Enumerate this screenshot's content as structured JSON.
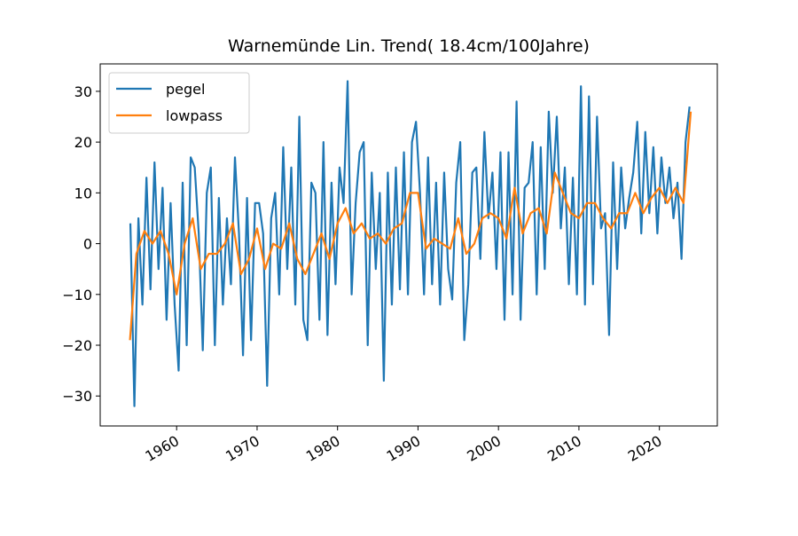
{
  "chart_data": {
    "type": "line",
    "title": "Warnemünde   Lin. Trend( 18.4cm/100Jahre)",
    "xlim": [
      1950.5,
      2027.2
    ],
    "xticks": [
      1960,
      1970,
      1980,
      1990,
      2000,
      2010,
      2020
    ],
    "ylim": [
      -35.9,
      35.4
    ],
    "yticks": [
      {
        "value": 30,
        "label": "30"
      },
      {
        "value": 20,
        "label": "20"
      },
      {
        "value": 10,
        "label": "10"
      },
      {
        "value": 0,
        "label": "0"
      },
      {
        "value": -10,
        "label": "−10"
      },
      {
        "value": -20,
        "label": "−20"
      },
      {
        "value": -30,
        "label": "−30"
      }
    ],
    "legend": "upper left",
    "grid": false,
    "series": [
      {
        "name": "pegel",
        "color": "#1f77b4",
        "x": [
          1954.25,
          1954.75,
          1955.25,
          1955.75,
          1956.25,
          1956.75,
          1957.25,
          1957.75,
          1958.25,
          1958.75,
          1959.25,
          1959.75,
          1960.25,
          1960.75,
          1961.25,
          1961.75,
          1962.25,
          1962.75,
          1963.25,
          1963.75,
          1964.25,
          1964.75,
          1965.25,
          1965.75,
          1966.25,
          1966.75,
          1967.25,
          1967.75,
          1968.25,
          1968.75,
          1969.25,
          1969.75,
          1970.25,
          1970.75,
          1971.25,
          1971.75,
          1972.25,
          1972.75,
          1973.25,
          1973.75,
          1974.25,
          1974.75,
          1975.25,
          1975.75,
          1976.25,
          1976.75,
          1977.25,
          1977.75,
          1978.25,
          1978.75,
          1979.25,
          1979.75,
          1980.25,
          1980.75,
          1981.25,
          1981.75,
          1982.25,
          1982.75,
          1983.25,
          1983.75,
          1984.25,
          1984.75,
          1985.25,
          1985.75,
          1986.25,
          1986.75,
          1987.25,
          1987.75,
          1988.25,
          1988.75,
          1989.25,
          1989.75,
          1990.25,
          1990.75,
          1991.25,
          1991.75,
          1992.25,
          1992.75,
          1993.25,
          1993.75,
          1994.25,
          1994.75,
          1995.25,
          1995.75,
          1996.25,
          1996.75,
          1997.25,
          1997.75,
          1998.25,
          1998.75,
          1999.25,
          1999.75,
          2000.25,
          2000.75,
          2001.25,
          2001.75,
          2002.25,
          2002.75,
          2003.25,
          2003.75,
          2004.25,
          2004.75,
          2005.25,
          2005.75,
          2006.25,
          2006.75,
          2007.25,
          2007.75,
          2008.25,
          2008.75,
          2009.25,
          2009.75,
          2010.25,
          2010.75,
          2011.25,
          2011.75,
          2012.25,
          2012.75,
          2013.25,
          2013.75,
          2014.25,
          2014.75,
          2015.25,
          2015.75,
          2016.25,
          2016.75,
          2017.25,
          2017.75,
          2018.25,
          2018.75,
          2019.25,
          2019.75,
          2020.25,
          2020.75,
          2021.25,
          2021.75,
          2022.25,
          2022.75,
          2023.25,
          2023.75
        ],
        "values": [
          4,
          -32,
          5,
          -12,
          13,
          -9,
          16,
          -5,
          11,
          -15,
          8,
          -12,
          -25,
          12,
          -20,
          17,
          15,
          2,
          -21,
          10,
          15,
          -20,
          9,
          -12,
          5,
          -8,
          17,
          2,
          -22,
          9,
          -19,
          8,
          8,
          2,
          -28,
          5,
          10,
          -10,
          19,
          -5,
          15,
          -12,
          25,
          -15,
          -19,
          12,
          10,
          -15,
          20,
          -18,
          12,
          -8,
          15,
          8,
          32,
          -10,
          8,
          18,
          20,
          -20,
          14,
          -5,
          10,
          -27,
          14,
          -12,
          15,
          -9,
          18,
          -10,
          20,
          24,
          10,
          -10,
          17,
          -8,
          12,
          -12,
          14,
          -5,
          -11,
          12,
          20,
          -19,
          -8,
          14,
          15,
          -3,
          22,
          5,
          14,
          -5,
          18,
          -15,
          18,
          -10,
          28,
          -15,
          11,
          12,
          20,
          -10,
          19,
          -5,
          26,
          10,
          25,
          3,
          15,
          -8,
          13,
          -10,
          31,
          -12,
          29,
          -8,
          25,
          3,
          6,
          -18,
          16,
          -5,
          15,
          3,
          9,
          14,
          24,
          2,
          22,
          6,
          19,
          2,
          17,
          8,
          15,
          5,
          12,
          -3,
          20,
          27
        ]
      },
      {
        "name": "lowpass",
        "color": "#ff7f0e",
        "x": [
          1954.2,
          1955,
          1956,
          1957,
          1958,
          1959,
          1960,
          1961,
          1962,
          1963,
          1964,
          1965,
          1966,
          1967,
          1968,
          1969,
          1970,
          1971,
          1972,
          1973,
          1974,
          1975,
          1976,
          1977,
          1978,
          1979,
          1980,
          1981,
          1982,
          1983,
          1984,
          1985,
          1986,
          1987,
          1988,
          1989,
          1990,
          1991,
          1992,
          1993,
          1994,
          1995,
          1996,
          1997,
          1998,
          1999,
          2000,
          2001,
          2002,
          2003,
          2004,
          2005,
          2006,
          2007,
          2008,
          2009,
          2010,
          2011,
          2012,
          2013,
          2014,
          2015,
          2016,
          2017,
          2018,
          2019,
          2020,
          2021,
          2022,
          2023,
          2023.9
        ],
        "values": [
          -19,
          -2,
          2.5,
          0,
          2.5,
          -2,
          -10,
          0,
          5,
          -5,
          -2,
          -2,
          0,
          4,
          -6,
          -3,
          3,
          -5,
          0,
          -1,
          4,
          -3,
          -6,
          -2,
          2,
          -3,
          4,
          7,
          2,
          4,
          1,
          2,
          0,
          3,
          4,
          10,
          10,
          -1,
          1,
          0,
          -1,
          5,
          -2,
          0,
          5,
          6,
          5,
          1,
          11,
          2,
          6,
          7,
          2,
          14,
          10,
          6,
          5,
          8,
          8,
          5,
          3,
          6,
          6,
          10,
          6,
          9,
          11,
          8,
          11,
          8,
          26
        ]
      }
    ]
  }
}
